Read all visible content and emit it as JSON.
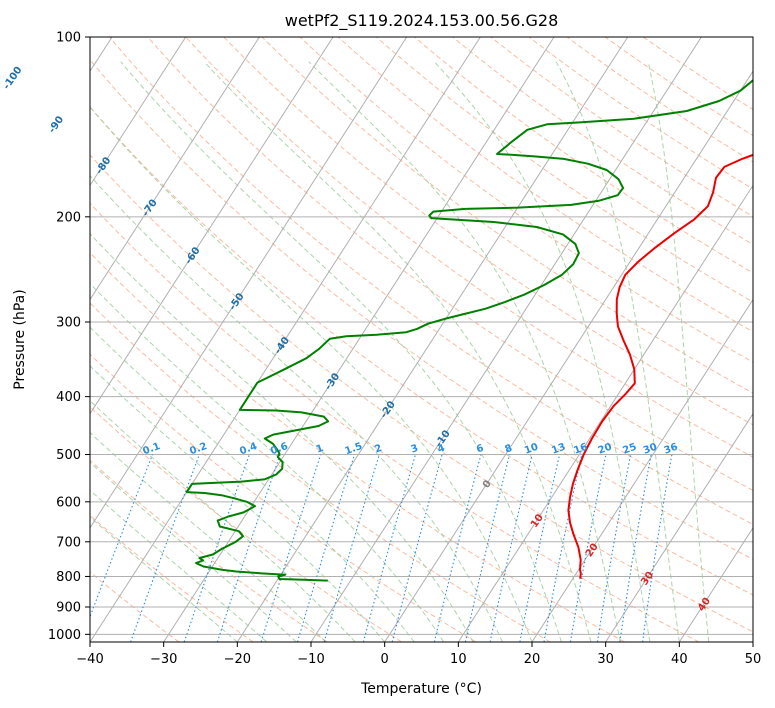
{
  "chart_data": {
    "type": "line",
    "title": "wetPf2_S119.2024.153.00.56.G28",
    "xlabel": "Temperature (°C)",
    "ylabel": "Pressure (hPa)",
    "xlim": [
      -40,
      50
    ],
    "ylim": [
      1030,
      100
    ],
    "y_scale": "log",
    "grid": true,
    "x_ticks": [
      -40,
      -30,
      -20,
      -10,
      0,
      10,
      20,
      30,
      40,
      50
    ],
    "y_ticks": [
      100,
      200,
      300,
      400,
      500,
      600,
      700,
      800,
      900,
      1000
    ],
    "isotherm_labels": [
      "-100",
      "-90",
      "-80",
      "-70",
      "-60",
      "-50",
      "-40",
      "-30",
      "-20",
      "-10",
      "0",
      "10",
      "20",
      "30",
      "40"
    ],
    "mixing_ratio_labels": [
      "0.1",
      "0.2",
      "0.4",
      "0.6",
      "1",
      "1.5",
      "2",
      "3",
      "4",
      "6",
      "8",
      "10",
      "13",
      "16",
      "20",
      "25",
      "30",
      "36"
    ],
    "colors": {
      "temperature": "#ee0000",
      "dewpoint": "#008000",
      "isotherm_cold": "#1f6fa8",
      "isotherm_warm": "#d62728",
      "isotherm_zero": "#808080",
      "mixing_ratio": "#2a8ee0",
      "dry_adiabat": "#f4a582",
      "moist_adiabat": "#9ccc9c",
      "grid": "#b0b0b0"
    },
    "series": [
      {
        "id": "temperature",
        "points": [
          [
            21,
            807
          ],
          [
            20.6,
            790
          ],
          [
            20.2,
            780
          ],
          [
            19.4,
            750
          ],
          [
            18,
            715
          ],
          [
            16.2,
            680
          ],
          [
            14.7,
            650
          ],
          [
            13.4,
            620
          ],
          [
            12.5,
            590
          ],
          [
            11.7,
            560
          ],
          [
            11.1,
            530
          ],
          [
            10.6,
            500
          ],
          [
            10.3,
            470
          ],
          [
            10.2,
            440
          ],
          [
            10.4,
            415
          ],
          [
            11,
            395
          ],
          [
            11.3,
            380
          ],
          [
            10,
            360
          ],
          [
            8.1,
            340
          ],
          [
            6,
            322
          ],
          [
            4,
            305
          ],
          [
            2.7,
            290
          ],
          [
            1.5,
            275
          ],
          [
            0.8,
            262
          ],
          [
            0.5,
            250
          ],
          [
            1.1,
            238
          ],
          [
            2.2,
            225
          ],
          [
            3.5,
            213
          ],
          [
            5,
            202
          ],
          [
            5.7,
            192
          ],
          [
            5.2,
            182
          ],
          [
            4.3,
            172
          ],
          [
            4.5,
            165
          ],
          [
            6.2,
            160
          ],
          [
            8.5,
            155
          ],
          [
            10.5,
            149
          ],
          [
            11.3,
            142
          ],
          [
            11.4,
            134
          ],
          [
            10.9,
            126
          ],
          [
            10.6,
            118
          ],
          [
            10.7,
            112
          ],
          [
            11.5,
            106
          ],
          [
            13.5,
            100
          ]
        ]
      },
      {
        "id": "dewpoint",
        "points": [
          [
            -13.1,
            813
          ],
          [
            -16.5,
            810
          ],
          [
            -19.8,
            808
          ],
          [
            -20.2,
            800
          ],
          [
            -19.4,
            795
          ],
          [
            -23,
            790
          ],
          [
            -26.3,
            785
          ],
          [
            -28.3,
            780
          ],
          [
            -31.2,
            770
          ],
          [
            -32.5,
            760
          ],
          [
            -31.8,
            752
          ],
          [
            -32.5,
            745
          ],
          [
            -31,
            735
          ],
          [
            -30.3,
            720
          ],
          [
            -29,
            700
          ],
          [
            -28.5,
            685
          ],
          [
            -29.5,
            672
          ],
          [
            -32.5,
            660
          ],
          [
            -33.3,
            645
          ],
          [
            -32.2,
            635
          ],
          [
            -30.5,
            625
          ],
          [
            -29.5,
            610
          ],
          [
            -31,
            600
          ],
          [
            -33,
            592
          ],
          [
            -35,
            585
          ],
          [
            -37.5,
            580
          ],
          [
            -40,
            578
          ],
          [
            -40,
            560
          ],
          [
            -37.5,
            558
          ],
          [
            -33.5,
            555
          ],
          [
            -30.5,
            550
          ],
          [
            -29.4,
            540
          ],
          [
            -29.1,
            528
          ],
          [
            -29.6,
            515
          ],
          [
            -30.7,
            505
          ],
          [
            -30.8,
            498
          ],
          [
            -31.5,
            490
          ],
          [
            -32.5,
            480
          ],
          [
            -34.1,
            470
          ],
          [
            -33.3,
            463
          ],
          [
            -30.5,
            455
          ],
          [
            -27.9,
            448
          ],
          [
            -27,
            440
          ],
          [
            -28,
            432
          ],
          [
            -31.4,
            425
          ],
          [
            -35,
            422
          ],
          [
            -40,
            421
          ],
          [
            -40,
            379
          ],
          [
            -37.5,
            360
          ],
          [
            -35.5,
            345
          ],
          [
            -34.6,
            333
          ],
          [
            -34,
            320
          ],
          [
            -32,
            317
          ],
          [
            -28,
            315
          ],
          [
            -24.2,
            312
          ],
          [
            -23,
            308
          ],
          [
            -22,
            302
          ],
          [
            -20,
            296
          ],
          [
            -18,
            291
          ],
          [
            -15.5,
            285
          ],
          [
            -13.5,
            278
          ],
          [
            -11.5,
            270
          ],
          [
            -9.6,
            260
          ],
          [
            -8.1,
            250
          ],
          [
            -7.5,
            240
          ],
          [
            -7.7,
            230
          ],
          [
            -9,
            222
          ],
          [
            -11.5,
            214
          ],
          [
            -15.7,
            208
          ],
          [
            -22,
            204
          ],
          [
            -28,
            202
          ],
          [
            -30.8,
            201
          ],
          [
            -31.3,
            199
          ],
          [
            -31.1,
            196
          ],
          [
            -27,
            194
          ],
          [
            -20,
            193
          ],
          [
            -13,
            191
          ],
          [
            -9.6,
            188
          ],
          [
            -7.5,
            184
          ],
          [
            -7.4,
            179
          ],
          [
            -8.8,
            173
          ],
          [
            -11.2,
            167
          ],
          [
            -14.3,
            163
          ],
          [
            -18,
            160
          ],
          [
            -22,
            158.5
          ],
          [
            -25.5,
            157.5
          ],
          [
            -27.5,
            157
          ],
          [
            -26.6,
            150
          ],
          [
            -25.5,
            143
          ],
          [
            -23.3,
            140
          ],
          [
            -19,
            139
          ],
          [
            -12,
            137
          ],
          [
            -5.5,
            133
          ],
          [
            -2,
            128
          ],
          [
            0,
            123
          ],
          [
            1,
            117
          ],
          [
            2.4,
            110
          ],
          [
            3,
            103
          ],
          [
            3.2,
            100
          ]
        ]
      }
    ]
  }
}
